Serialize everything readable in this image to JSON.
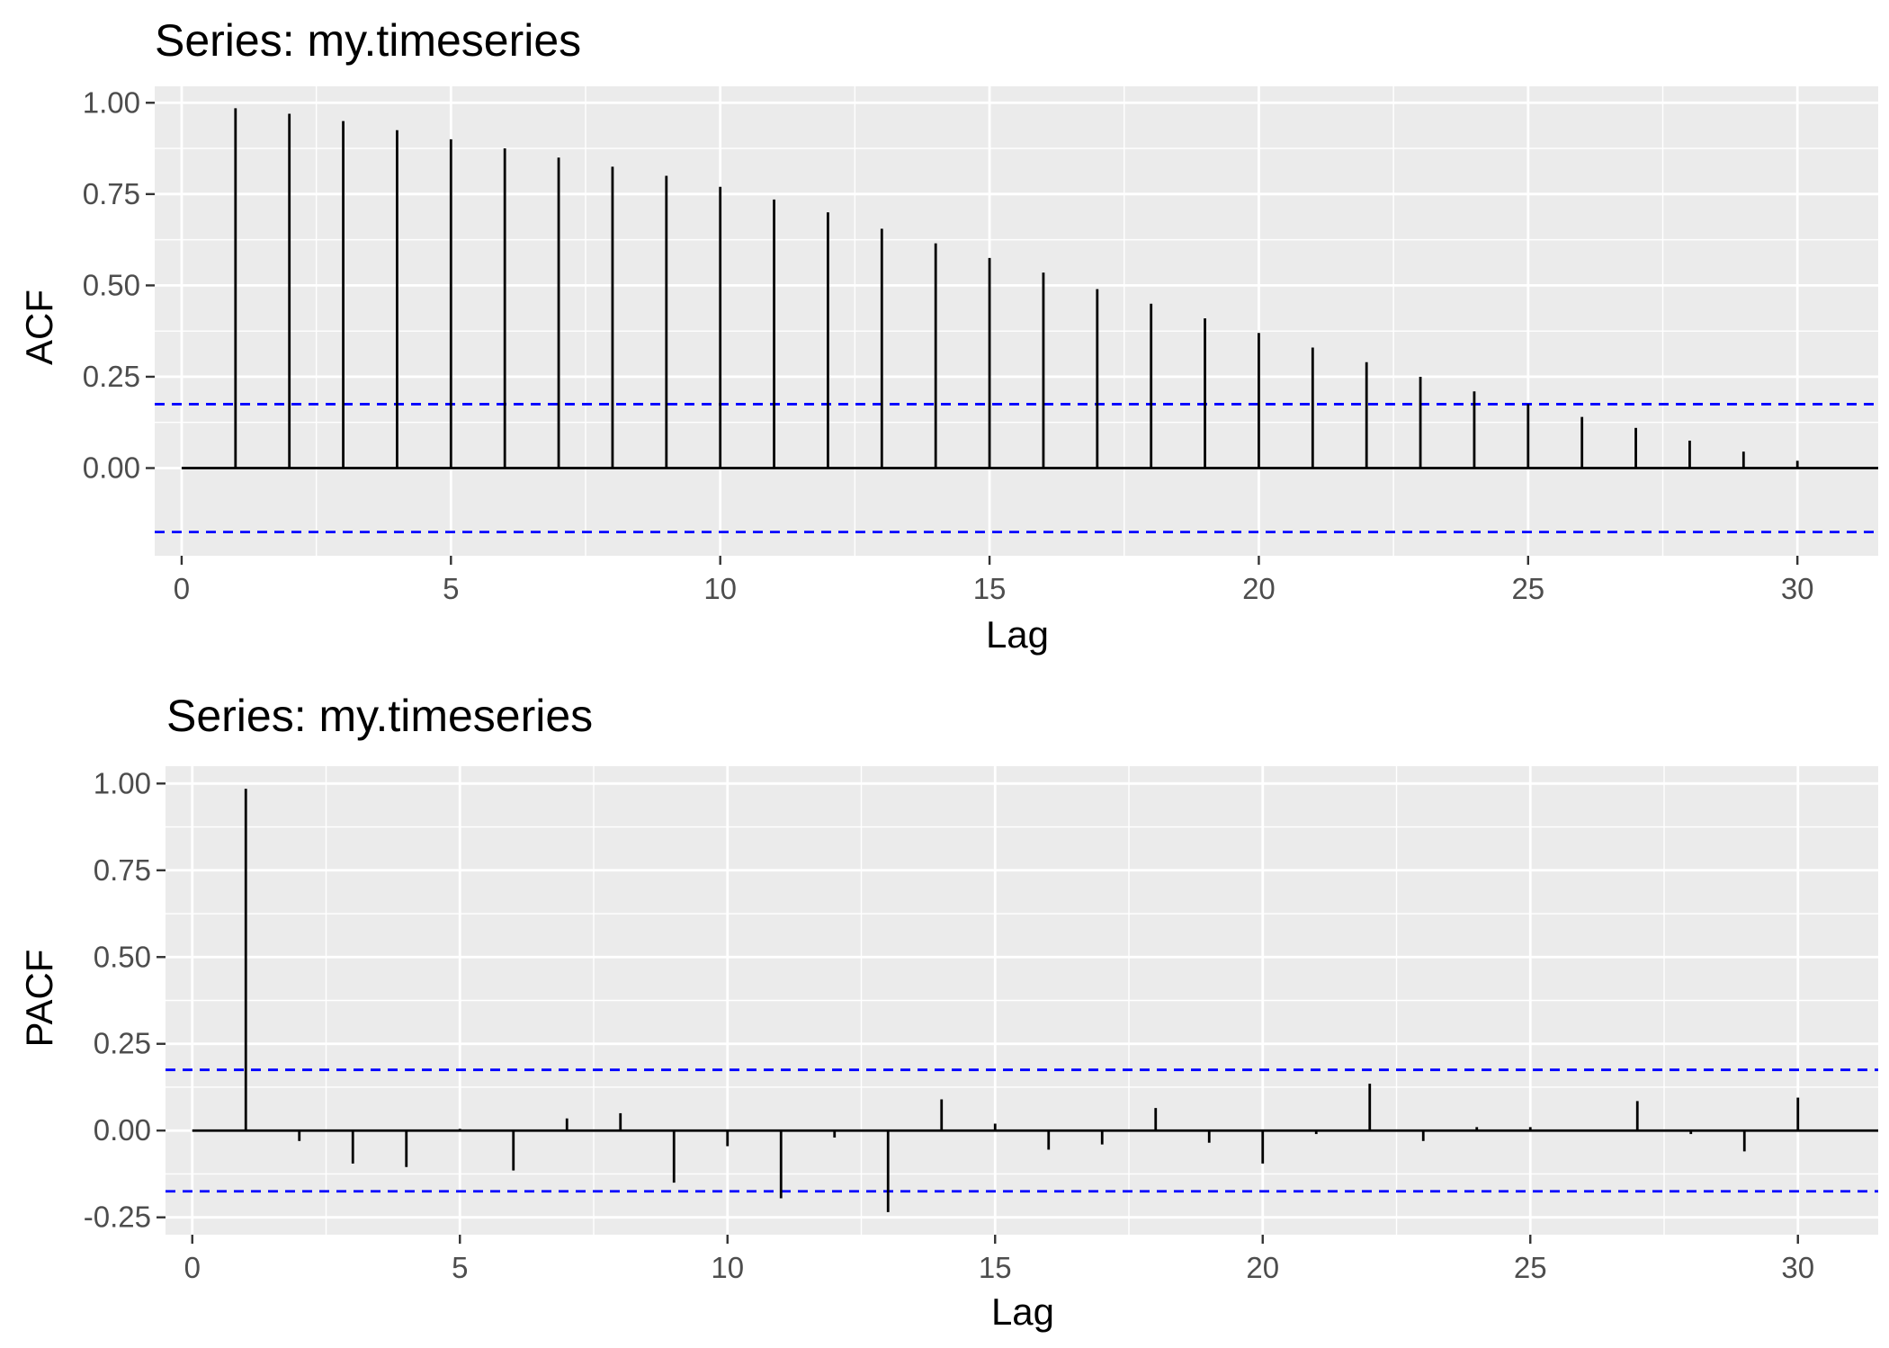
{
  "chart_data": [
    {
      "type": "bar",
      "title": "Series: my.timeseries",
      "xlabel": "Lag",
      "ylabel": "ACF",
      "xlim": [
        -0.5,
        31.5
      ],
      "ylim": [
        -0.24,
        1.045
      ],
      "x_ticks": [
        0,
        5,
        10,
        15,
        20,
        25,
        30
      ],
      "y_ticks": [
        0.0,
        0.25,
        0.5,
        0.75,
        1.0
      ],
      "y_tick_labels": [
        "0.00",
        "0.25",
        "0.50",
        "0.75",
        "1.00"
      ],
      "x_tick_labels": [
        "0",
        "5",
        "10",
        "15",
        "20",
        "25",
        "30"
      ],
      "lags": [
        1,
        2,
        3,
        4,
        5,
        6,
        7,
        8,
        9,
        10,
        11,
        12,
        13,
        14,
        15,
        16,
        17,
        18,
        19,
        20,
        21,
        22,
        23,
        24,
        25,
        26,
        27,
        28,
        29,
        30
      ],
      "values": [
        0.985,
        0.97,
        0.95,
        0.925,
        0.9,
        0.875,
        0.85,
        0.825,
        0.8,
        0.77,
        0.735,
        0.7,
        0.655,
        0.615,
        0.575,
        0.535,
        0.49,
        0.45,
        0.41,
        0.37,
        0.33,
        0.29,
        0.25,
        0.21,
        0.175,
        0.14,
        0.11,
        0.075,
        0.045,
        0.02
      ],
      "confidence_bounds": [
        0.175,
        -0.175
      ],
      "colors": {
        "panel": "#ebebeb",
        "grid": "#ffffff",
        "bar": "#000000",
        "bound": "#0000ff"
      },
      "grid": true
    },
    {
      "type": "bar",
      "title": "Series: my.timeseries",
      "xlabel": "Lag",
      "ylabel": "PACF",
      "xlim": [
        -0.5,
        31.5
      ],
      "ylim": [
        -0.3,
        1.05
      ],
      "x_ticks": [
        0,
        5,
        10,
        15,
        20,
        25,
        30
      ],
      "y_ticks": [
        -0.25,
        0.0,
        0.25,
        0.5,
        0.75,
        1.0
      ],
      "y_tick_labels": [
        "-0.25",
        "0.00",
        "0.25",
        "0.50",
        "0.75",
        "1.00"
      ],
      "x_tick_labels": [
        "0",
        "5",
        "10",
        "15",
        "20",
        "25",
        "30"
      ],
      "lags": [
        1,
        2,
        3,
        4,
        5,
        6,
        7,
        8,
        9,
        10,
        11,
        12,
        13,
        14,
        15,
        16,
        17,
        18,
        19,
        20,
        21,
        22,
        23,
        24,
        25,
        26,
        27,
        28,
        29,
        30
      ],
      "values": [
        0.985,
        -0.03,
        -0.095,
        -0.105,
        0.005,
        -0.115,
        0.035,
        0.05,
        -0.15,
        -0.045,
        -0.195,
        -0.02,
        -0.235,
        0.09,
        0.02,
        -0.055,
        -0.04,
        0.065,
        -0.035,
        -0.095,
        -0.01,
        0.135,
        -0.03,
        0.01,
        0.01,
        0.0,
        0.085,
        -0.01,
        -0.06,
        0.095
      ],
      "confidence_bounds": [
        0.175,
        -0.175
      ],
      "colors": {
        "panel": "#ebebeb",
        "grid": "#ffffff",
        "bar": "#000000",
        "bound": "#0000ff"
      },
      "grid": true
    }
  ]
}
